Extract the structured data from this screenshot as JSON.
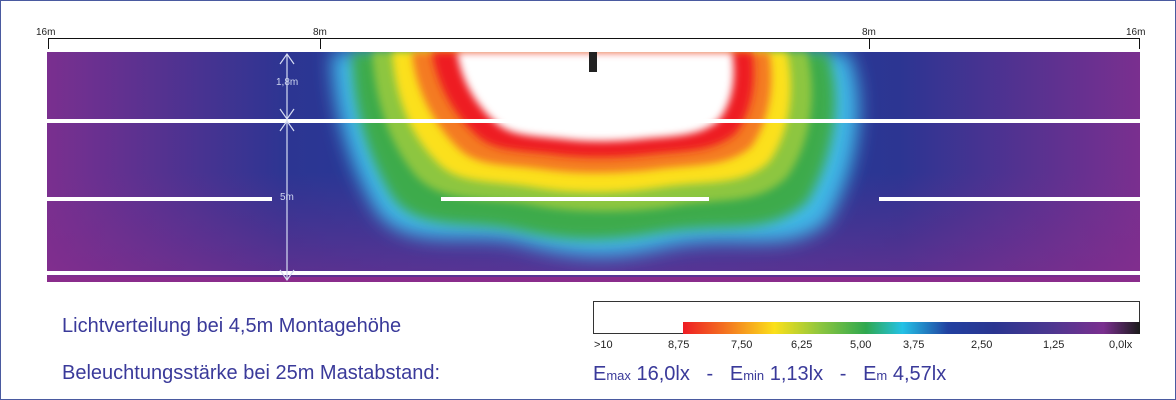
{
  "ruler": {
    "left_label": "16m",
    "left_inner_label": "8m",
    "right_inner_label": "8m",
    "right_label": "16m"
  },
  "dimensions": {
    "upper_offset": "1,8m",
    "lane_width": "5m"
  },
  "info": {
    "distribution_title": "Lichtverteilung bei 4,5m Montagehöhe",
    "illuminance_title": "Beleuchtungsstärke bei 25m Mastabstand:"
  },
  "legend": {
    "labels": [
      ">10",
      "8,75",
      "7,50",
      "6,25",
      "5,00",
      "3,75",
      "2,50",
      "1,25",
      "0,0lx"
    ],
    "colors": [
      "#ffffff",
      "#ee1c24",
      "#f47a20",
      "#fbe01a",
      "#8dc63f",
      "#2fa84f",
      "#24c2e6",
      "#2140a0",
      "#7a2f8f",
      "#1a1a1a"
    ]
  },
  "stats": {
    "emax_prefix": "E",
    "emax_sub": "max",
    "emax_value": " 16,0lx",
    "sep1": "   -   ",
    "emin_prefix": "E",
    "emin_sub": "min",
    "emin_value": " 1,13lx",
    "sep2": "   -   ",
    "em_prefix": "E",
    "em_sub": "m",
    "em_value": " 4,57lx"
  }
}
